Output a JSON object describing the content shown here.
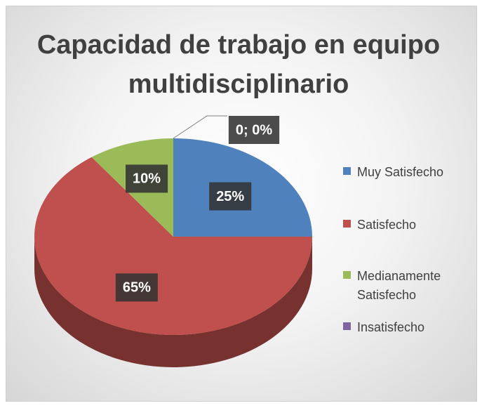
{
  "chart_data": {
    "type": "pie",
    "title": "Capacidad de trabajo en equipo multidisciplinario",
    "categories": [
      "Muy Satisfecho",
      "Satisfecho",
      "Medianamente Satisfecho",
      "Insatisfecho"
    ],
    "values": [
      25,
      65,
      10,
      0
    ],
    "value_labels": [
      "25%",
      "65%",
      "10%",
      "0; 0%"
    ],
    "colors": [
      "#4f81bd",
      "#c0504d",
      "#9bbb59",
      "#8064a2"
    ],
    "legend": "right"
  }
}
